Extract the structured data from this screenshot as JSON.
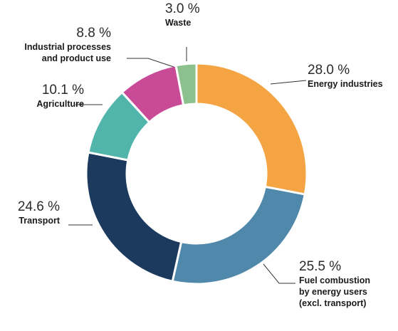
{
  "chart_data": {
    "type": "pie",
    "donut": true,
    "unit": "%",
    "slices": [
      {
        "name": "Energy industries",
        "value": 28.0,
        "label": "28.0 %",
        "text": [
          "Energy industries"
        ],
        "color": "#f4a443"
      },
      {
        "name": "Fuel combustion by energy users (excl. transport)",
        "value": 25.5,
        "label": "25.5 %",
        "text": [
          "Fuel combustion",
          "by energy users",
          "(excl. transport)"
        ],
        "color": "#4f88aa"
      },
      {
        "name": "Transport",
        "value": 24.6,
        "label": "24.6 %",
        "text": [
          "Transport"
        ],
        "color": "#1b3a5e"
      },
      {
        "name": "Agriculture",
        "value": 10.1,
        "label": "10.1 %",
        "text": [
          "Agriculture"
        ],
        "color": "#52b5ab"
      },
      {
        "name": "Industrial processes and product use",
        "value": 8.8,
        "label": "8.8 %",
        "text": [
          "Industrial processes",
          "and product use"
        ],
        "color": "#c94b98"
      },
      {
        "name": "Waste",
        "value": 3.0,
        "label": "3.0 %",
        "text": [
          "Waste"
        ],
        "color": "#8cc08c"
      }
    ]
  }
}
